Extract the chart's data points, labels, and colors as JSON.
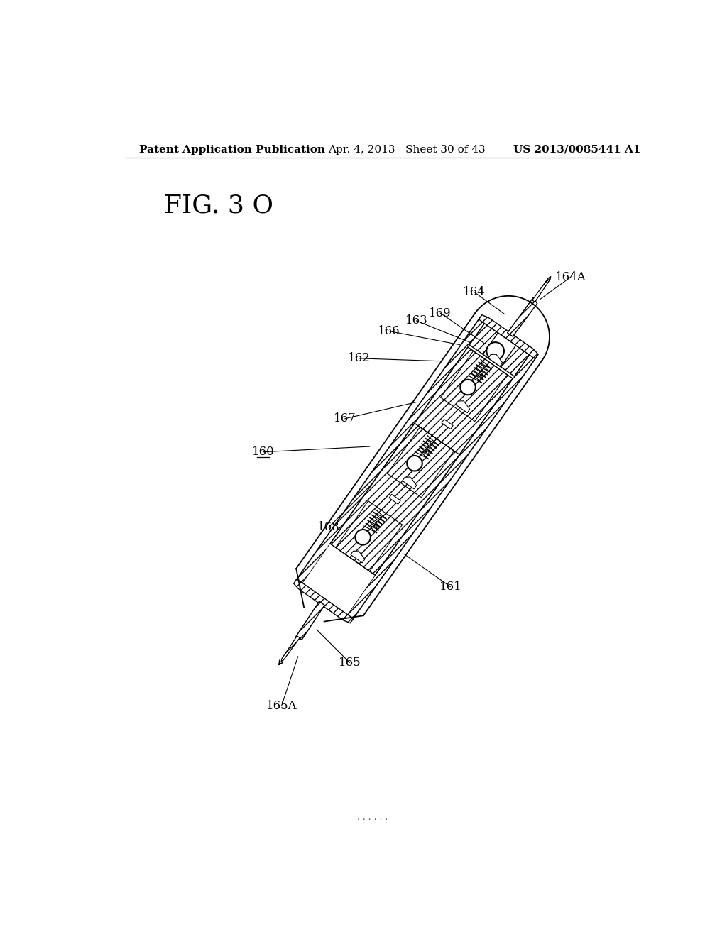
{
  "background_color": "#ffffff",
  "header_left": "Patent Application Publication",
  "header_center": "Apr. 4, 2013   Sheet 30 of 43",
  "header_right": "US 2013/0085441 A1",
  "figure_label": "FIG. 3 O",
  "figure_label_fontsize": 26,
  "header_fontsize": 11,
  "label_fontsize": 12,
  "footer_dots": "· · · · · ·"
}
